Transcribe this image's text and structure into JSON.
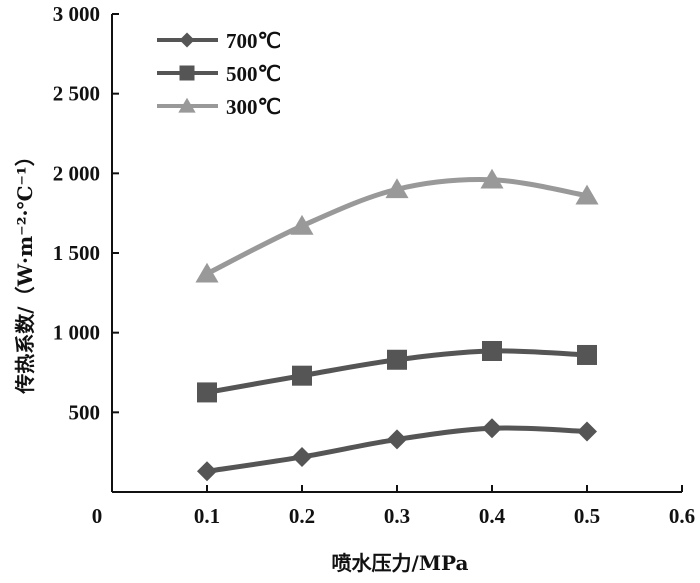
{
  "chart_data": {
    "type": "line",
    "title": "",
    "xlabel": "喷水压力/MPa",
    "ylabel": "传热系数/（W·m⁻²·℃⁻¹）",
    "xlim": [
      0,
      0.6
    ],
    "ylim": [
      0,
      3000
    ],
    "x_ticks": [
      0.1,
      0.2,
      0.3,
      0.4,
      0.5,
      0.6
    ],
    "x_tick_labels": [
      "0.1",
      "0.2",
      "0.3",
      "0.4",
      "0.5",
      "0.6"
    ],
    "origin_label": "0",
    "y_ticks": [
      500,
      1000,
      1500,
      2000,
      2500,
      3000
    ],
    "y_tick_labels": [
      "500",
      "1 000",
      "1 500",
      "2 000",
      "2 500",
      "3 000"
    ],
    "grid": false,
    "legend_position": "top-left",
    "x": [
      0.1,
      0.2,
      0.3,
      0.4,
      0.5
    ],
    "series": [
      {
        "name": "700℃",
        "marker": "diamond",
        "color": "#555555",
        "values": [
          130,
          220,
          330,
          400,
          380
        ]
      },
      {
        "name": "500℃",
        "marker": "square",
        "color": "#555555",
        "values": [
          625,
          730,
          830,
          885,
          860
        ]
      },
      {
        "name": "300℃",
        "marker": "triangle",
        "color": "#999999",
        "values": [
          1370,
          1670,
          1900,
          1960,
          1860
        ]
      }
    ]
  }
}
